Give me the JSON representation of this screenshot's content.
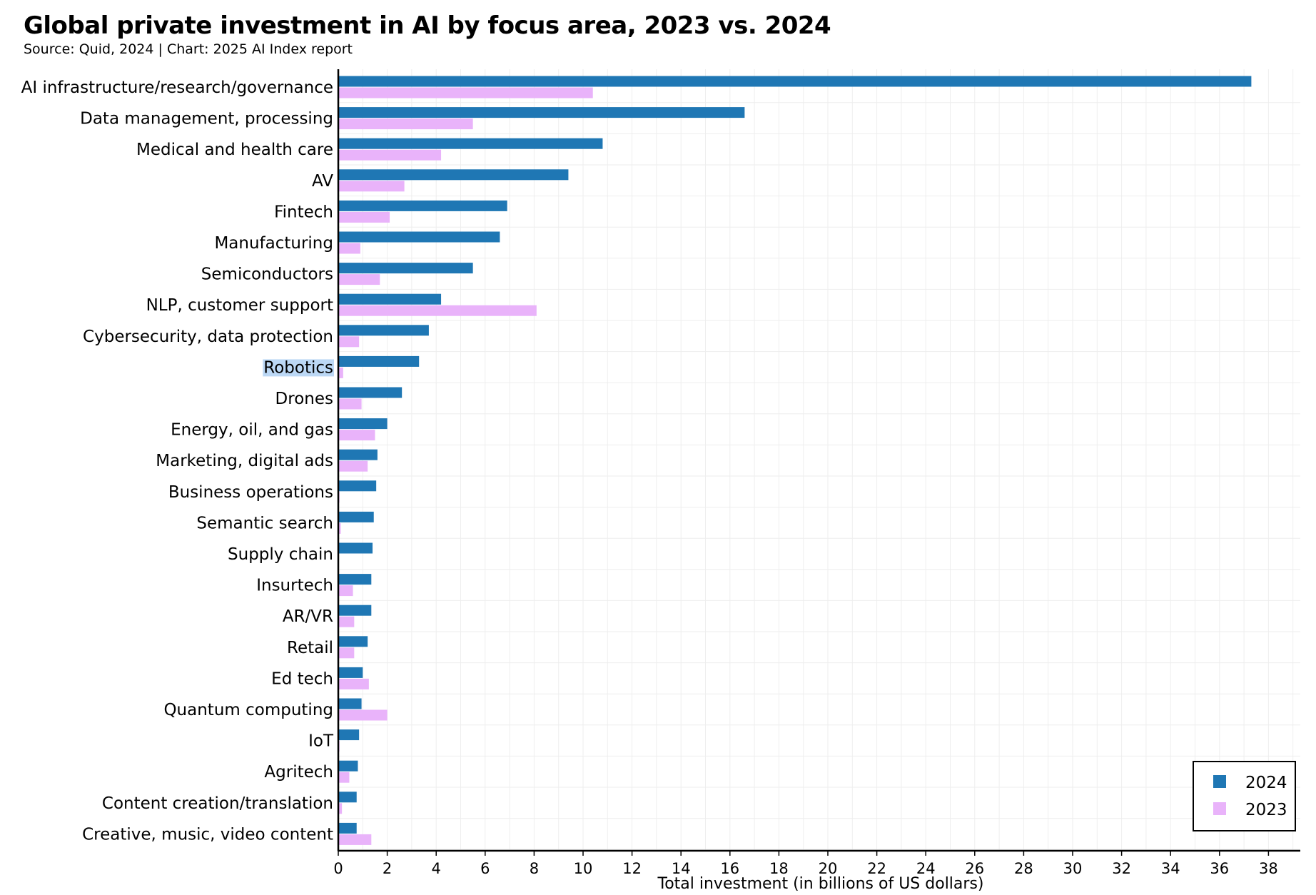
{
  "title": "Global private investment in AI by focus area, 2023 vs. 2024",
  "subtitle": "Source: Quid, 2024 | Chart: 2025 AI Index report",
  "colors": {
    "series_2024": "#1f77b4",
    "series_2023": "#e9b3fa",
    "highlight": "#bcd8f5",
    "grid": "#eeeeee"
  },
  "chart_data": {
    "type": "bar",
    "orientation": "horizontal",
    "title": "Global private investment in AI by focus area, 2023 vs. 2024",
    "xlabel": "Total investment (in billions of US dollars)",
    "ylabel": "",
    "xlim": [
      0,
      39
    ],
    "xticks": [
      0,
      2,
      4,
      6,
      8,
      10,
      12,
      14,
      16,
      18,
      20,
      22,
      24,
      26,
      28,
      30,
      32,
      34,
      36,
      38
    ],
    "grid": true,
    "legend_position": "bottom-right",
    "highlighted_category": "Robotics",
    "categories": [
      "AI infrastructure/research/governance",
      "Data management, processing",
      "Medical and health care",
      "AV",
      "Fintech",
      "Manufacturing",
      "Semiconductors",
      "NLP, customer support",
      "Cybersecurity, data protection",
      "Robotics",
      "Drones",
      "Energy, oil, and gas",
      "Marketing, digital ads",
      "Business operations",
      "Semantic search",
      "Supply chain",
      "Insurtech",
      "AR/VR",
      "Retail",
      "Ed tech",
      "Quantum computing",
      "IoT",
      "Agritech",
      "Content creation/translation",
      "Creative, music, video content"
    ],
    "series": [
      {
        "name": "2024",
        "values": [
          37.3,
          16.6,
          10.8,
          9.4,
          6.9,
          6.6,
          5.5,
          4.2,
          3.7,
          3.3,
          2.6,
          2.0,
          1.6,
          1.55,
          1.45,
          1.4,
          1.35,
          1.35,
          1.2,
          1.0,
          0.95,
          0.85,
          0.8,
          0.75,
          0.75
        ]
      },
      {
        "name": "2023",
        "values": [
          10.4,
          5.5,
          4.2,
          2.7,
          2.1,
          0.9,
          1.7,
          8.1,
          0.85,
          0.2,
          0.95,
          1.5,
          1.2,
          0.05,
          0.1,
          0.0,
          0.6,
          0.65,
          0.65,
          1.25,
          2.0,
          0.05,
          0.45,
          0.15,
          1.35
        ]
      }
    ]
  }
}
